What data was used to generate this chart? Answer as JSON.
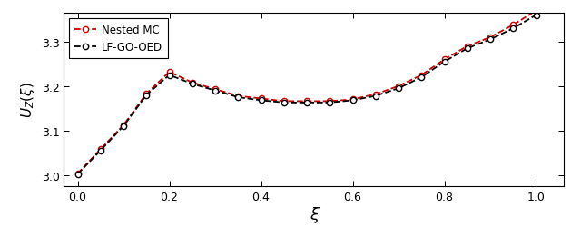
{
  "xi_black": [
    0.0,
    0.05,
    0.1,
    0.15,
    0.2,
    0.25,
    0.3,
    0.35,
    0.4,
    0.45,
    0.5,
    0.55,
    0.6,
    0.65,
    0.7,
    0.75,
    0.8,
    0.85,
    0.9,
    0.95,
    1.0
  ],
  "y_black": [
    3.002,
    3.055,
    3.11,
    3.18,
    3.225,
    3.205,
    3.19,
    3.175,
    3.168,
    3.163,
    3.163,
    3.163,
    3.168,
    3.178,
    3.195,
    3.22,
    3.255,
    3.285,
    3.305,
    3.33,
    3.36
  ],
  "xi_red": [
    0.0,
    0.05,
    0.1,
    0.15,
    0.2,
    0.25,
    0.3,
    0.35,
    0.4,
    0.45,
    0.5,
    0.55,
    0.6,
    0.65,
    0.7,
    0.75,
    0.8,
    0.85,
    0.9,
    0.95,
    1.0
  ],
  "y_red": [
    3.003,
    3.058,
    3.112,
    3.183,
    3.232,
    3.208,
    3.193,
    3.178,
    3.172,
    3.166,
    3.166,
    3.166,
    3.17,
    3.182,
    3.2,
    3.225,
    3.26,
    3.29,
    3.31,
    3.338,
    3.37
  ],
  "color_black": "#000000",
  "color_red": "#cc0000",
  "label_black": "LF-GO-OED",
  "label_red": "Nested MC",
  "xlabel": "ξ",
  "ylim": [
    2.975,
    3.365
  ],
  "xlim": [
    -0.03,
    1.06
  ],
  "yticks": [
    3.0,
    3.1,
    3.2,
    3.3
  ],
  "xticks": [
    0.0,
    0.2,
    0.4,
    0.6,
    0.8,
    1.0
  ],
  "background_color": "#ffffff",
  "linewidth": 1.3,
  "markersize": 4.5
}
